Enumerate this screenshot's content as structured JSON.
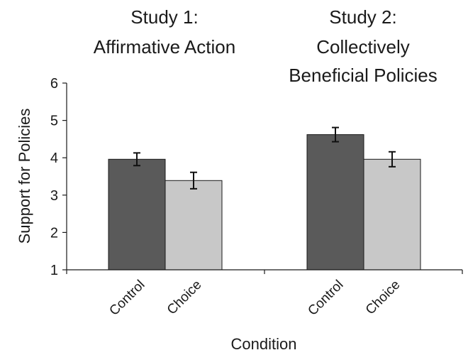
{
  "chart_data": {
    "type": "bar",
    "xlabel": "Condition",
    "ylabel": "Support for Policies",
    "ylim": [
      1,
      6
    ],
    "yticks": [
      "1",
      "2",
      "3",
      "4",
      "5",
      "6"
    ],
    "grid": false,
    "legend": "none",
    "groups": [
      {
        "title_lines": [
          "Study 1:",
          "Affirmative Action"
        ],
        "categories": [
          "Control",
          "Choice"
        ],
        "values": [
          3.96,
          3.39
        ],
        "errors": [
          0.17,
          0.22
        ]
      },
      {
        "title_lines": [
          "Study 2:",
          "Collectively",
          "Beneficial Policies"
        ],
        "categories": [
          "Control",
          "Choice"
        ],
        "values": [
          4.62,
          3.96
        ],
        "errors": [
          0.19,
          0.2
        ]
      }
    ],
    "colors": {
      "Control": "#5a5a5a",
      "Choice": "#c8c8c8"
    }
  }
}
